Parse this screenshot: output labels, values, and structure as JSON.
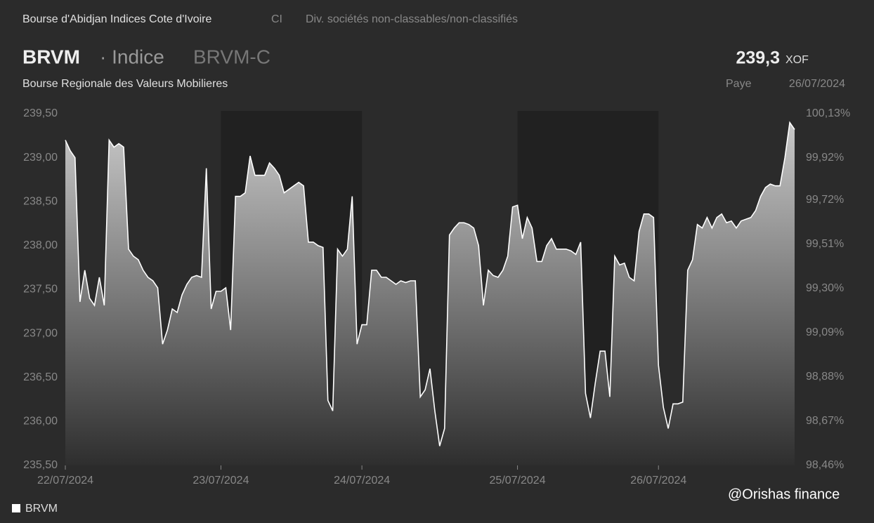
{
  "header": {
    "exchange": "Bourse d'Abidjan Indices Cote d'Ivoire",
    "country": "CI",
    "sector": "Div. sociétés non-classables/non-classifiés",
    "symbol": "BRVM",
    "kind": "· Indice",
    "ticker": "BRVM-C",
    "full_name": "Bourse Regionale des Valeurs Mobilieres",
    "price": "239,3",
    "currency": "XOF",
    "status": "Paye",
    "date": "26/07/2024"
  },
  "watermark": "@Orishas finance",
  "chart_data": {
    "type": "area",
    "categories": [
      "22/07/2024",
      null,
      null,
      null,
      null,
      null,
      null,
      null,
      null,
      null,
      null,
      null,
      null,
      null,
      null,
      null,
      null,
      null,
      null,
      null,
      null,
      null,
      null,
      null,
      null,
      null,
      null,
      null,
      null,
      null,
      null,
      null,
      "23/07/2024",
      null,
      null,
      null,
      null,
      null,
      null,
      null,
      null,
      null,
      null,
      null,
      null,
      null,
      null,
      null,
      null,
      null,
      null,
      null,
      null,
      null,
      null,
      null,
      null,
      null,
      null,
      null,
      null,
      "24/07/2024",
      null,
      null,
      null,
      null,
      null,
      null,
      null,
      null,
      null,
      null,
      null,
      null,
      null,
      null,
      null,
      null,
      null,
      null,
      null,
      null,
      null,
      null,
      null,
      null,
      null,
      null,
      null,
      null,
      null,
      null,
      null,
      "25/07/2024",
      null,
      null,
      null,
      null,
      null,
      null,
      null,
      null,
      null,
      null,
      null,
      null,
      null,
      null,
      null,
      null,
      null,
      null,
      null,
      null,
      null,
      null,
      null,
      null,
      null,
      null,
      null,
      null,
      "26/07/2024",
      null,
      null,
      null,
      null,
      null,
      null,
      null,
      null,
      null,
      null,
      null,
      null,
      null,
      null,
      null,
      null,
      null,
      null,
      null,
      null,
      null,
      null,
      null,
      null,
      null,
      null,
      null,
      null
    ],
    "series": [
      {
        "name": "BRVM",
        "color": "#ffffff",
        "values": [
          239.2,
          239.08,
          239.0,
          237.36,
          237.72,
          237.4,
          237.32,
          237.64,
          237.32,
          239.2,
          239.12,
          239.16,
          239.12,
          237.96,
          237.88,
          237.84,
          237.72,
          237.64,
          237.6,
          237.52,
          236.88,
          237.04,
          237.28,
          237.24,
          237.44,
          237.56,
          237.64,
          237.66,
          237.64,
          238.88,
          237.28,
          237.48,
          237.48,
          237.52,
          237.04,
          238.56,
          238.56,
          238.6,
          239.02,
          238.8,
          238.8,
          238.8,
          238.94,
          238.88,
          238.8,
          238.6,
          238.64,
          238.68,
          238.72,
          238.68,
          238.04,
          238.04,
          238.0,
          237.98,
          236.24,
          236.12,
          237.96,
          237.88,
          237.96,
          238.56,
          236.88,
          237.1,
          237.1,
          237.72,
          237.72,
          237.64,
          237.64,
          237.6,
          237.56,
          237.6,
          237.58,
          237.6,
          237.6,
          236.28,
          236.36,
          236.6,
          236.12,
          235.72,
          235.92,
          238.12,
          238.2,
          238.26,
          238.26,
          238.24,
          238.2,
          238.0,
          237.32,
          237.72,
          237.66,
          237.64,
          237.72,
          237.88,
          238.44,
          238.46,
          238.08,
          238.32,
          238.2,
          237.82,
          237.82,
          238.0,
          238.08,
          237.96,
          237.96,
          237.96,
          237.94,
          237.9,
          238.04,
          236.32,
          236.04,
          236.44,
          236.8,
          236.8,
          236.28,
          237.88,
          237.78,
          237.8,
          237.64,
          237.6,
          238.16,
          238.36,
          238.36,
          238.32,
          236.64,
          236.16,
          235.92,
          236.2,
          236.2,
          236.22,
          237.72,
          237.84,
          238.24,
          238.2,
          238.32,
          238.2,
          238.32,
          238.36,
          238.26,
          238.28,
          238.2,
          238.28,
          238.3,
          238.32,
          238.4,
          238.56,
          238.66,
          238.7,
          238.68,
          238.68,
          239.0,
          239.4,
          239.32
        ]
      }
    ],
    "ylim": [
      235.5,
      239.5
    ],
    "yticks": [
      {
        "value": 235.5,
        "label": "235,50"
      },
      {
        "value": 236,
        "label": "236,00"
      },
      {
        "value": 236.5,
        "label": "236,50"
      },
      {
        "value": 237,
        "label": "237,00"
      },
      {
        "value": 237.5,
        "label": "237,50"
      },
      {
        "value": 238,
        "label": "238,00"
      },
      {
        "value": 238.5,
        "label": "238,50"
      },
      {
        "value": 239,
        "label": "239,00"
      },
      {
        "value": 239.5,
        "label": "239,50"
      }
    ],
    "y2lim": [
      98.46,
      100.13
    ],
    "y2ticks": [
      {
        "value": 98.46,
        "label": "98,46%"
      },
      {
        "value": 98.67,
        "label": "98,67%"
      },
      {
        "value": 98.88,
        "label": "98,88%"
      },
      {
        "value": 99.09,
        "label": "99,09%"
      },
      {
        "value": 99.3,
        "label": "99,30%"
      },
      {
        "value": 99.51,
        "label": "99,51%"
      },
      {
        "value": 99.72,
        "label": "99,72%"
      },
      {
        "value": 99.92,
        "label": "99,92%"
      },
      {
        "value": 100.13,
        "label": "100,13%"
      }
    ],
    "legend": "bottom-left"
  }
}
